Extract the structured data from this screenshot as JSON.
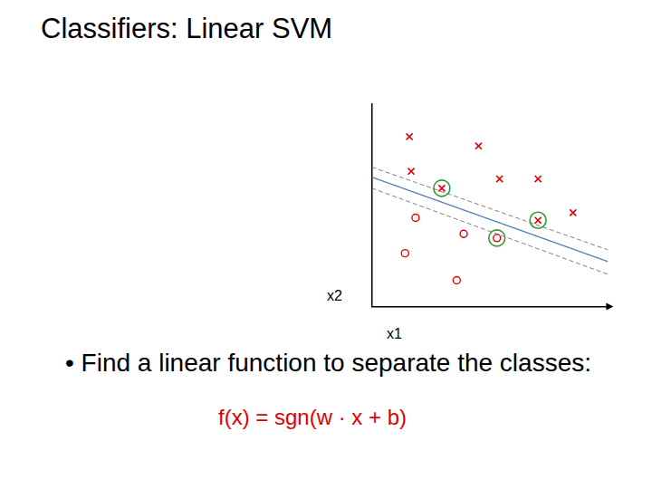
{
  "chart_data": {
    "type": "scatter",
    "title": "Classifiers: Linear SVM",
    "xlabel": "x1",
    "ylabel": "x2",
    "annotations": [
      "• Find a linear function to separate the classes:",
      "f(x) = sgn(w · x + b)"
    ],
    "xlim": [
      0,
      270
    ],
    "ylim": [
      0,
      240
    ],
    "tick_labels": false,
    "grid": false,
    "series": [
      {
        "color": "#e00000",
        "marker": "x",
        "values": [
          {
            "x": 43,
            "y": 201
          },
          {
            "x": 122,
            "y": 190
          },
          {
            "x": 45,
            "y": 160
          },
          {
            "x": 80,
            "y": 140
          },
          {
            "x": 146,
            "y": 151
          },
          {
            "x": 190,
            "y": 151
          },
          {
            "x": 190,
            "y": 102
          },
          {
            "x": 230,
            "y": 111
          }
        ]
      },
      {
        "color": "#e00000",
        "marker": "o",
        "values": [
          {
            "x": 50,
            "y": 105
          },
          {
            "x": 105,
            "y": 86
          },
          {
            "x": 143,
            "y": 81
          },
          {
            "x": 38,
            "y": 63
          },
          {
            "x": 97,
            "y": 31
          }
        ]
      },
      {
        "color": "#339933",
        "marker": "circle",
        "values": [
          {
            "x": 80,
            "y": 140
          },
          {
            "x": 190,
            "y": 102
          },
          {
            "x": 143,
            "y": 81
          }
        ]
      },
      {
        "type": "line",
        "color": "#4f81bd",
        "line_style": "solid",
        "values": [
          {
            "x": 0,
            "y": 153
          },
          {
            "x": 270,
            "y": 53
          }
        ]
      },
      {
        "type": "line",
        "color": "#7f7f7f",
        "line_style": "dashed",
        "values": [
          {
            "x": 0,
            "y": 165
          },
          {
            "x": 270,
            "y": 67
          }
        ]
      },
      {
        "type": "line",
        "color": "#7f7f7f",
        "line_style": "dashed",
        "values": [
          {
            "x": 0,
            "y": 140
          },
          {
            "x": 270,
            "y": 38
          }
        ]
      }
    ]
  }
}
